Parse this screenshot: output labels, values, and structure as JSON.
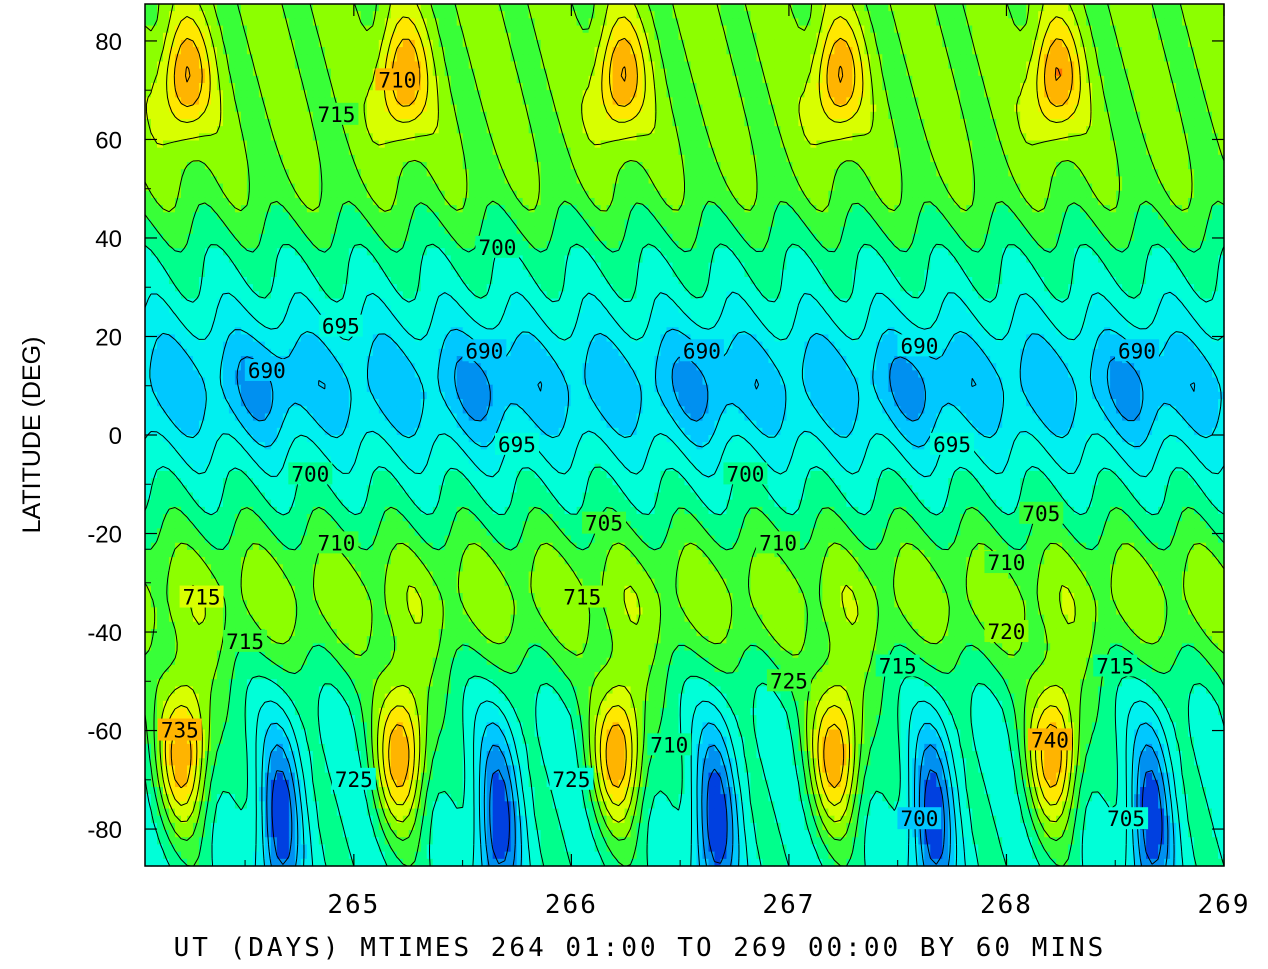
{
  "chart_data": {
    "type": "heatmap",
    "subtype": "filled-contour",
    "xlabel": "UT (DAYS) MTIMES 264 01:00 TO 269 00:00 BY   60 MINS",
    "ylabel": "LATITUDE (DEG)",
    "xlim": [
      264.04,
      269.0
    ],
    "ylim": [
      -87.5,
      87.5
    ],
    "x_ticks": [
      265,
      266,
      267,
      268,
      269
    ],
    "x_tick_labels": [
      "265",
      "266",
      "267",
      "268",
      "269"
    ],
    "y_ticks": [
      80,
      60,
      40,
      20,
      0,
      -20,
      -40,
      -60,
      -80
    ],
    "y_tick_labels": [
      "80",
      "60",
      "40",
      "20",
      "0",
      "-20",
      "-40",
      "-60",
      "-80"
    ],
    "contour_levels": [
      665,
      670,
      675,
      680,
      685,
      690,
      695,
      700,
      705,
      710,
      715,
      720,
      725,
      730,
      735,
      740,
      745
    ],
    "colors": [
      "#0000cc",
      "#0040e0",
      "#0090f0",
      "#00c8ff",
      "#00f0f0",
      "#00ffd8",
      "#00ff8c",
      "#38ff38",
      "#8cff00",
      "#d8ff00",
      "#ffe800",
      "#ffb400",
      "#ff6e00",
      "#ff2a00",
      "#ff0040",
      "#ff0090",
      "#ff00ff"
    ],
    "contour_labels": [
      {
        "text": "715",
        "x": 264.92,
        "y": 65
      },
      {
        "text": "710",
        "x": 265.2,
        "y": 72
      },
      {
        "text": "700",
        "x": 265.66,
        "y": 38
      },
      {
        "text": "695",
        "x": 264.94,
        "y": 22
      },
      {
        "text": "690",
        "x": 264.6,
        "y": 13
      },
      {
        "text": "690",
        "x": 265.6,
        "y": 17
      },
      {
        "text": "690",
        "x": 266.6,
        "y": 17
      },
      {
        "text": "690",
        "x": 267.6,
        "y": 18
      },
      {
        "text": "690",
        "x": 268.6,
        "y": 17
      },
      {
        "text": "695",
        "x": 265.75,
        "y": -2
      },
      {
        "text": "695",
        "x": 267.75,
        "y": -2
      },
      {
        "text": "700",
        "x": 264.8,
        "y": -8
      },
      {
        "text": "700",
        "x": 266.8,
        "y": -8
      },
      {
        "text": "705",
        "x": 266.15,
        "y": -18
      },
      {
        "text": "705",
        "x": 268.16,
        "y": -16
      },
      {
        "text": "710",
        "x": 264.92,
        "y": -22
      },
      {
        "text": "710",
        "x": 266.95,
        "y": -22
      },
      {
        "text": "710",
        "x": 268.0,
        "y": -26
      },
      {
        "text": "715",
        "x": 264.3,
        "y": -33
      },
      {
        "text": "715",
        "x": 266.05,
        "y": -33
      },
      {
        "text": "715",
        "x": 264.5,
        "y": -42
      },
      {
        "text": "715",
        "x": 267.5,
        "y": -47
      },
      {
        "text": "715",
        "x": 268.5,
        "y": -47
      },
      {
        "text": "720",
        "x": 268.0,
        "y": -40
      },
      {
        "text": "725",
        "x": 267.0,
        "y": -50
      },
      {
        "text": "735",
        "x": 264.2,
        "y": -60
      },
      {
        "text": "740",
        "x": 268.2,
        "y": -62
      },
      {
        "text": "725",
        "x": 265.0,
        "y": -70
      },
      {
        "text": "725",
        "x": 266.0,
        "y": -70
      },
      {
        "text": "710",
        "x": 266.45,
        "y": -63
      },
      {
        "text": "700",
        "x": 267.6,
        "y": -78
      },
      {
        "text": "705",
        "x": 268.55,
        "y": -78
      }
    ]
  }
}
